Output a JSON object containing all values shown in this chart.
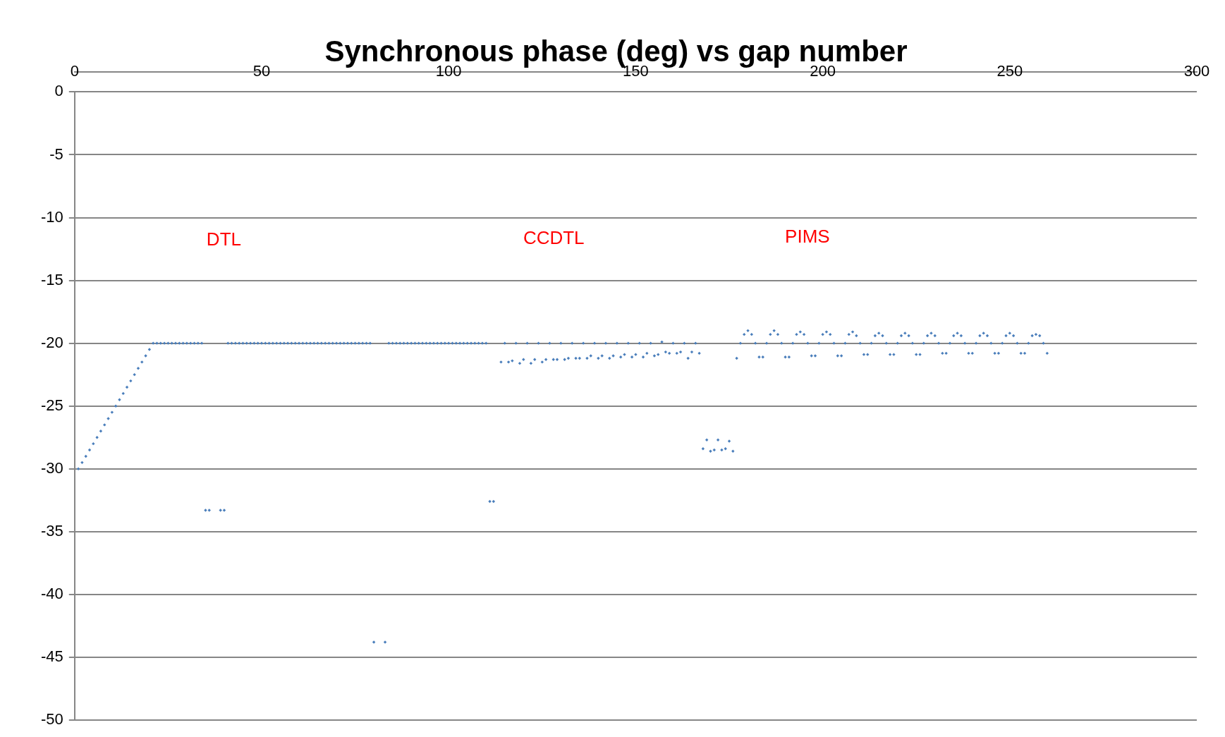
{
  "chart_data": {
    "type": "scatter",
    "title": "Synchronous phase (deg) vs gap number",
    "x": [
      1,
      2,
      3,
      4,
      5,
      6,
      7,
      8,
      9,
      10,
      11,
      12,
      13,
      14,
      15,
      16,
      17,
      18,
      19,
      20,
      21,
      22,
      23,
      24,
      25,
      26,
      27,
      28,
      29,
      30,
      31,
      32,
      33,
      34,
      35,
      36,
      39,
      40,
      41,
      42,
      43,
      44,
      45,
      46,
      47,
      48,
      49,
      50,
      51,
      52,
      53,
      54,
      55,
      56,
      57,
      58,
      59,
      60,
      61,
      62,
      63,
      64,
      65,
      66,
      67,
      68,
      69,
      70,
      71,
      72,
      73,
      74,
      75,
      76,
      77,
      78,
      79,
      80,
      83,
      84,
      85,
      86,
      87,
      88,
      89,
      90,
      91,
      92,
      93,
      94,
      95,
      96,
      97,
      98,
      99,
      100,
      101,
      102,
      103,
      104,
      105,
      106,
      107,
      108,
      109,
      110,
      111,
      112,
      114,
      115,
      116,
      117,
      118,
      119,
      120,
      121,
      122,
      123,
      124,
      125,
      126,
      127,
      128,
      129,
      130,
      131,
      132,
      133,
      134,
      135,
      136,
      137,
      138,
      139,
      140,
      141,
      142,
      143,
      144,
      145,
      146,
      147,
      148,
      149,
      150,
      151,
      152,
      153,
      154,
      155,
      156,
      157,
      158,
      159,
      160,
      161,
      162,
      163,
      164,
      165,
      166,
      167,
      168,
      169,
      170,
      171,
      172,
      173,
      174,
      175,
      176,
      177,
      178,
      179,
      180,
      181,
      182,
      183,
      184,
      185,
      186,
      187,
      188,
      189,
      190,
      191,
      192,
      193,
      194,
      195,
      196,
      197,
      198,
      199,
      200,
      201,
      202,
      203,
      204,
      205,
      206,
      207,
      208,
      209,
      210,
      211,
      212,
      213,
      214,
      215,
      216,
      217,
      218,
      219,
      220,
      221,
      222,
      223,
      224,
      225,
      226,
      227,
      228,
      229,
      230,
      231,
      232,
      233,
      234,
      235,
      236,
      237,
      238,
      239,
      240,
      241,
      242,
      243,
      244,
      245,
      246,
      247,
      248,
      249,
      250,
      251,
      252,
      253,
      254,
      255,
      256,
      257,
      258,
      259,
      260
    ],
    "series": [
      {
        "color": "#4a7ebb",
        "values": [
          -30,
          -29.5,
          -29,
          -28.5,
          -28,
          -27.5,
          -27,
          -26.5,
          -26,
          -25.5,
          -25,
          -24.5,
          -24,
          -23.5,
          -23,
          -22.5,
          -22,
          -21.5,
          -21,
          -20.5,
          -20,
          -20,
          -20,
          -20,
          -20,
          -20,
          -20,
          -20,
          -20,
          -20,
          -20,
          -20,
          -20,
          -20,
          -33.3,
          -33.3,
          -33.3,
          -33.3,
          -20,
          -20,
          -20,
          -20,
          -20,
          -20,
          -20,
          -20,
          -20,
          -20,
          -20,
          -20,
          -20,
          -20,
          -20,
          -20,
          -20,
          -20,
          -20,
          -20,
          -20,
          -20,
          -20,
          -20,
          -20,
          -20,
          -20,
          -20,
          -20,
          -20,
          -20,
          -20,
          -20,
          -20,
          -20,
          -20,
          -20,
          -20,
          -20,
          -43.8,
          -43.8,
          -20,
          -20,
          -20,
          -20,
          -20,
          -20,
          -20,
          -20,
          -20,
          -20,
          -20,
          -20,
          -20,
          -20,
          -20,
          -20,
          -20,
          -20,
          -20,
          -20,
          -20,
          -20,
          -20,
          -20,
          -20,
          -20,
          -20,
          -32.6,
          -32.6,
          -21.5,
          -20,
          -21.5,
          -21.4,
          -20,
          -21.6,
          -21.3,
          -20,
          -21.6,
          -21.3,
          -20,
          -21.5,
          -21.3,
          -20,
          -21.3,
          -21.3,
          -20,
          -21.3,
          -21.2,
          -20,
          -21.2,
          -21.2,
          -20,
          -21.2,
          -21.0,
          -20,
          -21.2,
          -21.0,
          -20,
          -21.2,
          -21.0,
          -20,
          -21.1,
          -20.9,
          -20,
          -21.1,
          -20.9,
          -20,
          -21.1,
          -20.8,
          -20,
          -21.0,
          -20.9,
          -19.9,
          -20.7,
          -20.8,
          -20,
          -20.8,
          -20.7,
          -20,
          -21.2,
          -20.7,
          -20,
          -20.8,
          -28.4,
          -27.7,
          -28.6,
          -28.5,
          -27.7,
          -28.5,
          -28.4,
          -27.8,
          -28.6,
          -21.2,
          -20,
          -19.3,
          -19.0,
          -19.3,
          -20,
          -21.1,
          -21.1,
          -20,
          -19.3,
          -19.0,
          -19.3,
          -20,
          -21.1,
          -21.1,
          -20,
          -19.3,
          -19.1,
          -19.3,
          -20,
          -21.0,
          -21.0,
          -20,
          -19.3,
          -19.1,
          -19.3,
          -20,
          -21.0,
          -21.0,
          -20,
          -19.3,
          -19.1,
          -19.4,
          -20,
          -20.9,
          -20.9,
          -20,
          -19.4,
          -19.2,
          -19.4,
          -20,
          -20.9,
          -20.9,
          -20,
          -19.4,
          -19.2,
          -19.4,
          -20,
          -20.9,
          -20.9,
          -20,
          -19.4,
          -19.2,
          -19.4,
          -20,
          -20.8,
          -20.8,
          -20,
          -19.4,
          -19.2,
          -19.4,
          -20,
          -20.8,
          -20.8,
          -20,
          -19.4,
          -19.2,
          -19.4,
          -20,
          -20.8,
          -20.8,
          -20,
          -19.4,
          -19.2,
          -19.4,
          -20,
          -20.8,
          -20.8,
          -20,
          -19.4,
          -19.3,
          -19.4,
          -20,
          -20.8
        ]
      }
    ],
    "xlim": [
      0,
      300
    ],
    "xticks": [
      0,
      50,
      100,
      150,
      200,
      250,
      300
    ],
    "ylim": [
      -50,
      0
    ],
    "yticks": [
      -50,
      -45,
      -40,
      -35,
      -30,
      -25,
      -20,
      -15,
      -10,
      -5,
      0
    ],
    "grid": "y",
    "marker": "diamond",
    "annotations": [
      "DTL",
      "CCDTL",
      "PIMS"
    ]
  }
}
